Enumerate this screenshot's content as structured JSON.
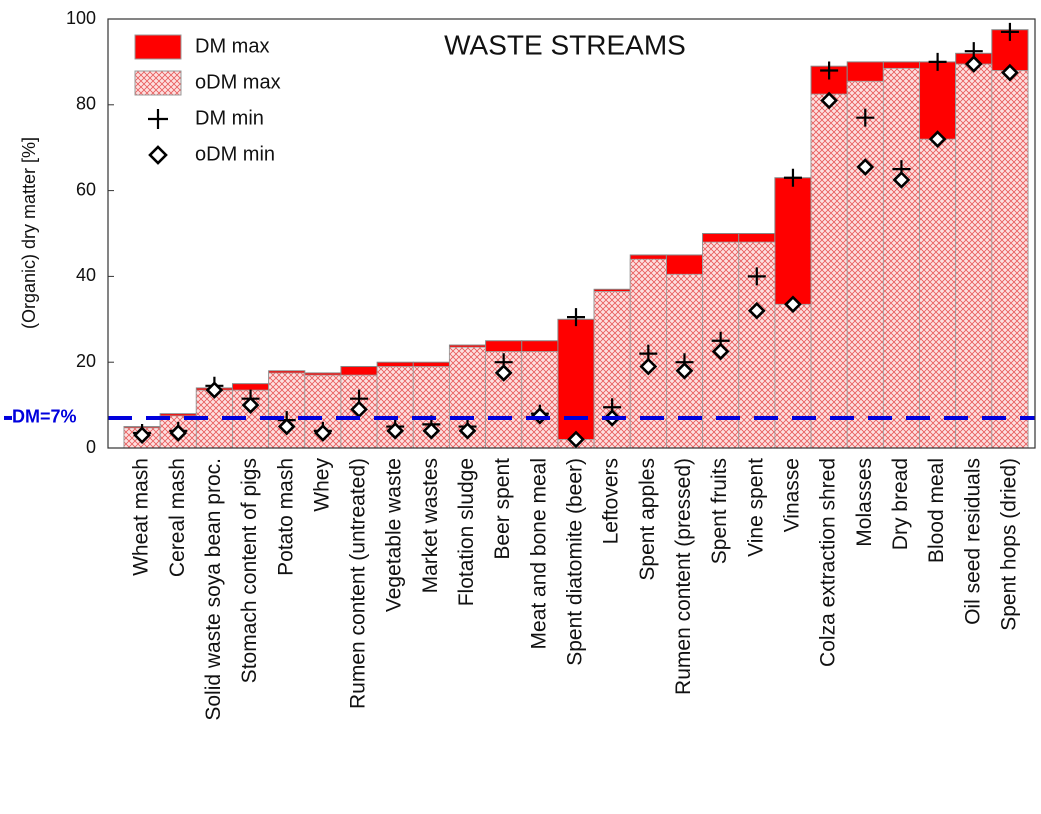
{
  "chart_data": {
    "type": "bar",
    "title": "WASTE STREAMS",
    "y_label": "(Organic) dry matter [%]",
    "categories": [
      "Wheat mash",
      "Cereal mash",
      "Solid waste soya bean proc.",
      "Stomach content of pigs",
      "Potato mash",
      "Whey",
      "Rumen content (untreated)",
      "Vegetable waste",
      "Market wastes",
      "Flotation sludge",
      "Beer spent",
      "Meat and bone meal",
      "Spent diatomite (beer)",
      "Leftovers",
      "Spent apples",
      "Rumen content (pressed)",
      "Spent fruits",
      "Vine spent",
      "Vinasse",
      "Colza extraction shred",
      "Molasses",
      "Dry bread",
      "Blood meal",
      "Oil seed residuals",
      "Spent hops (dried)"
    ],
    "series": [
      {
        "name": "DM max",
        "color": "#ff0000",
        "style": "bar",
        "values": [
          5,
          8,
          14,
          15,
          18,
          17.5,
          19,
          20,
          20,
          24,
          25,
          25,
          30,
          37,
          45,
          45,
          50,
          50,
          63,
          89,
          90,
          90,
          90,
          92,
          97.5
        ]
      },
      {
        "name": "oDM max",
        "color": "#ff0000",
        "style": "hatch",
        "values": [
          4.7,
          7.5,
          13.5,
          13.5,
          17.5,
          17,
          17,
          19,
          19,
          23.5,
          22.5,
          22.5,
          2,
          36.5,
          44,
          40.5,
          48,
          48,
          33.5,
          82.5,
          85.5,
          88.5,
          72,
          89.5,
          88
        ]
      },
      {
        "name": "DM min",
        "color": "#000000",
        "style": "plus",
        "values": [
          3.5,
          4,
          14.5,
          11.5,
          6.5,
          4,
          11.5,
          5,
          5.5,
          5,
          20,
          8,
          30.5,
          9.5,
          22,
          20,
          25,
          40,
          63,
          88,
          77,
          65,
          90,
          92.5,
          97
        ]
      },
      {
        "name": "oDM min",
        "color": "#000000",
        "style": "diamond",
        "values": [
          3,
          3.5,
          13.5,
          10,
          5,
          3.5,
          9,
          4,
          4,
          4,
          17.5,
          7.5,
          2,
          7,
          19,
          18,
          22.5,
          32,
          33.5,
          81,
          65.5,
          62.5,
          72,
          89.5,
          87.5
        ]
      }
    ],
    "reference_line": {
      "value": 7,
      "label": "DM=7%",
      "color": "#0000dd"
    },
    "ylim": [
      0,
      100
    ],
    "yticks": [
      0,
      20,
      40,
      60,
      80,
      100
    ],
    "legend": "top-left"
  }
}
